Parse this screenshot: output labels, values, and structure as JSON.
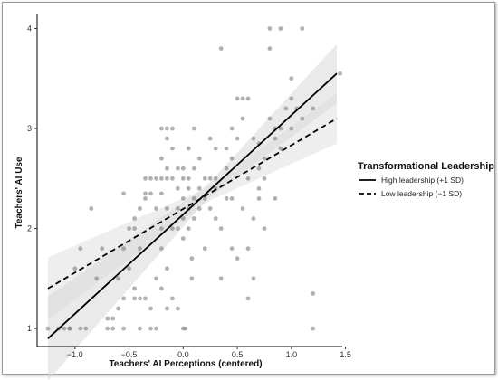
{
  "chart_data": {
    "type": "scatter",
    "xlabel": "Teachers' AI Perceptions (centered)",
    "ylabel": "Teachers' AI Use",
    "xlim": [
      -1.35,
      1.47
    ],
    "ylim": [
      0.82,
      4.14
    ],
    "x_ticks": [
      -1.0,
      -0.5,
      0.0,
      0.5,
      1.0,
      1.5
    ],
    "x_tick_labels": [
      "−1.0",
      "−0.5",
      "0.0",
      "0.5",
      "1.0",
      "1.5"
    ],
    "y_ticks": [
      1,
      2,
      3,
      4
    ],
    "y_tick_labels": [
      "1",
      "2",
      "3",
      "4"
    ],
    "grid": false,
    "legend_position": "right",
    "legend_title": "Transformational Leadership",
    "colors": {
      "points": "#7d7d7d",
      "lines": "#000000",
      "ribbon": "#d9d9d9"
    },
    "series": [
      {
        "name": "High leadership (+1 SD)",
        "style": "solid",
        "x": [
          -1.25,
          1.42
        ],
        "y": [
          0.9,
          3.55
        ]
      },
      {
        "name": "Low leadership (−1 SD)",
        "style": "dashed",
        "x": [
          -1.25,
          1.42
        ],
        "y": [
          1.4,
          3.1
        ]
      }
    ],
    "points": [
      [
        -1.25,
        1.0
      ],
      [
        -1.15,
        1.0
      ],
      [
        -1.1,
        1.0
      ],
      [
        -1.05,
        1.0
      ],
      [
        -1.05,
        1.0
      ],
      [
        -0.95,
        1.0
      ],
      [
        -0.9,
        1.0
      ],
      [
        -0.85,
        2.2
      ],
      [
        -0.95,
        1.8
      ],
      [
        -0.75,
        1.8
      ],
      [
        -0.7,
        1.0
      ],
      [
        -0.7,
        1.1
      ],
      [
        -0.65,
        1.1
      ],
      [
        -0.6,
        1.2
      ],
      [
        -0.65,
        1.0
      ],
      [
        -0.55,
        1.0
      ],
      [
        -0.55,
        1.3
      ],
      [
        -0.5,
        1.6
      ],
      [
        -0.45,
        1.4
      ],
      [
        -0.45,
        1.3
      ],
      [
        -0.4,
        1.0
      ],
      [
        -0.6,
        1.5
      ],
      [
        -0.55,
        1.8
      ],
      [
        -0.5,
        2.0
      ],
      [
        -0.45,
        2.1
      ],
      [
        -0.55,
        2.35
      ],
      [
        -0.45,
        2.0
      ],
      [
        -0.4,
        1.8
      ],
      [
        -0.4,
        1.3
      ],
      [
        -0.35,
        1.3
      ],
      [
        -0.35,
        2.35
      ],
      [
        -0.3,
        1.0
      ],
      [
        -0.3,
        1.2
      ],
      [
        -0.25,
        1.0
      ],
      [
        -0.25,
        1.5
      ],
      [
        -0.35,
        2.5
      ],
      [
        -0.35,
        2.3
      ],
      [
        -0.3,
        2.5
      ],
      [
        -0.3,
        2.35
      ],
      [
        -0.25,
        2.5
      ],
      [
        -0.25,
        2.2
      ],
      [
        -0.2,
        2.5
      ],
      [
        -0.2,
        2.35
      ],
      [
        -0.2,
        2.0
      ],
      [
        -0.15,
        2.5
      ],
      [
        -0.15,
        2.6
      ],
      [
        -0.15,
        2.2
      ],
      [
        -0.1,
        2.5
      ],
      [
        -0.1,
        2.8
      ],
      [
        -0.1,
        2.0
      ],
      [
        -0.15,
        1.6
      ],
      [
        -0.2,
        1.8
      ],
      [
        -0.1,
        1.3
      ],
      [
        -0.15,
        1.2
      ],
      [
        -0.05,
        1.2
      ],
      [
        -0.2,
        1.4
      ],
      [
        -0.15,
        2.9
      ],
      [
        -0.2,
        3.0
      ],
      [
        -0.15,
        3.0
      ],
      [
        -0.1,
        3.0
      ],
      [
        -0.2,
        2.7
      ],
      [
        -0.05,
        2.6
      ],
      [
        -0.05,
        2.4
      ],
      [
        -0.05,
        2.2
      ],
      [
        -0.05,
        2.0
      ],
      [
        0.0,
        2.6
      ],
      [
        0.0,
        2.5
      ],
      [
        0.0,
        2.3
      ],
      [
        0.0,
        2.1
      ],
      [
        0.0,
        1.9
      ],
      [
        0.0,
        1.0
      ],
      [
        0.02,
        1.0
      ],
      [
        0.05,
        2.8
      ],
      [
        0.05,
        2.5
      ],
      [
        0.05,
        2.4
      ],
      [
        0.05,
        2.2
      ],
      [
        0.05,
        2.0
      ],
      [
        0.08,
        1.5
      ],
      [
        0.08,
        1.7
      ],
      [
        0.1,
        2.6
      ],
      [
        0.1,
        2.3
      ],
      [
        0.1,
        2.1
      ],
      [
        0.1,
        3.0
      ],
      [
        0.15,
        2.4
      ],
      [
        0.15,
        2.7
      ],
      [
        0.15,
        2.2
      ],
      [
        0.2,
        2.5
      ],
      [
        0.2,
        2.3
      ],
      [
        0.2,
        1.8
      ],
      [
        0.25,
        2.9
      ],
      [
        0.25,
        2.5
      ],
      [
        0.25,
        2.2
      ],
      [
        0.3,
        2.5
      ],
      [
        0.3,
        2.4
      ],
      [
        0.3,
        2.1
      ],
      [
        0.35,
        3.8
      ],
      [
        0.35,
        2.0
      ],
      [
        0.35,
        1.5
      ],
      [
        0.4,
        2.8
      ],
      [
        0.4,
        2.6
      ],
      [
        0.4,
        2.3
      ],
      [
        0.45,
        3.0
      ],
      [
        0.45,
        1.8
      ],
      [
        0.45,
        2.7
      ],
      [
        0.5,
        3.3
      ],
      [
        0.5,
        2.9
      ],
      [
        0.5,
        1.7
      ],
      [
        0.55,
        3.1
      ],
      [
        0.55,
        2.2
      ],
      [
        0.55,
        3.3
      ],
      [
        0.6,
        1.8
      ],
      [
        0.6,
        2.5
      ],
      [
        0.6,
        1.3
      ],
      [
        0.65,
        2.1
      ],
      [
        0.65,
        1.5
      ],
      [
        0.7,
        2.6
      ],
      [
        0.7,
        2.4
      ],
      [
        0.7,
        2.3
      ],
      [
        0.75,
        2.7
      ],
      [
        0.75,
        2.0
      ],
      [
        0.8,
        3.8
      ],
      [
        0.8,
        4.0
      ],
      [
        0.8,
        3.1
      ],
      [
        0.85,
        2.9
      ],
      [
        0.85,
        2.3
      ],
      [
        0.85,
        3.0
      ],
      [
        0.9,
        3.0
      ],
      [
        0.9,
        4.0
      ],
      [
        0.9,
        2.8
      ],
      [
        1.0,
        3.3
      ],
      [
        1.0,
        3.5
      ],
      [
        1.0,
        3.0
      ],
      [
        1.05,
        3.2
      ],
      [
        1.1,
        4.0
      ],
      [
        1.1,
        3.1
      ],
      [
        1.2,
        3.2
      ],
      [
        1.2,
        1.0
      ],
      [
        1.2,
        1.35
      ],
      [
        1.45,
        3.55
      ],
      [
        -1.0,
        1.6
      ],
      [
        -0.8,
        1.5
      ],
      [
        -0.4,
        2.2
      ],
      [
        0.3,
        2.8
      ],
      [
        0.45,
        2.3
      ],
      [
        0.65,
        2.9
      ],
      [
        0.75,
        2.5
      ],
      [
        0.95,
        3.2
      ],
      [
        0.6,
        3.3
      ],
      [
        0.7,
        2.85
      ]
    ]
  }
}
